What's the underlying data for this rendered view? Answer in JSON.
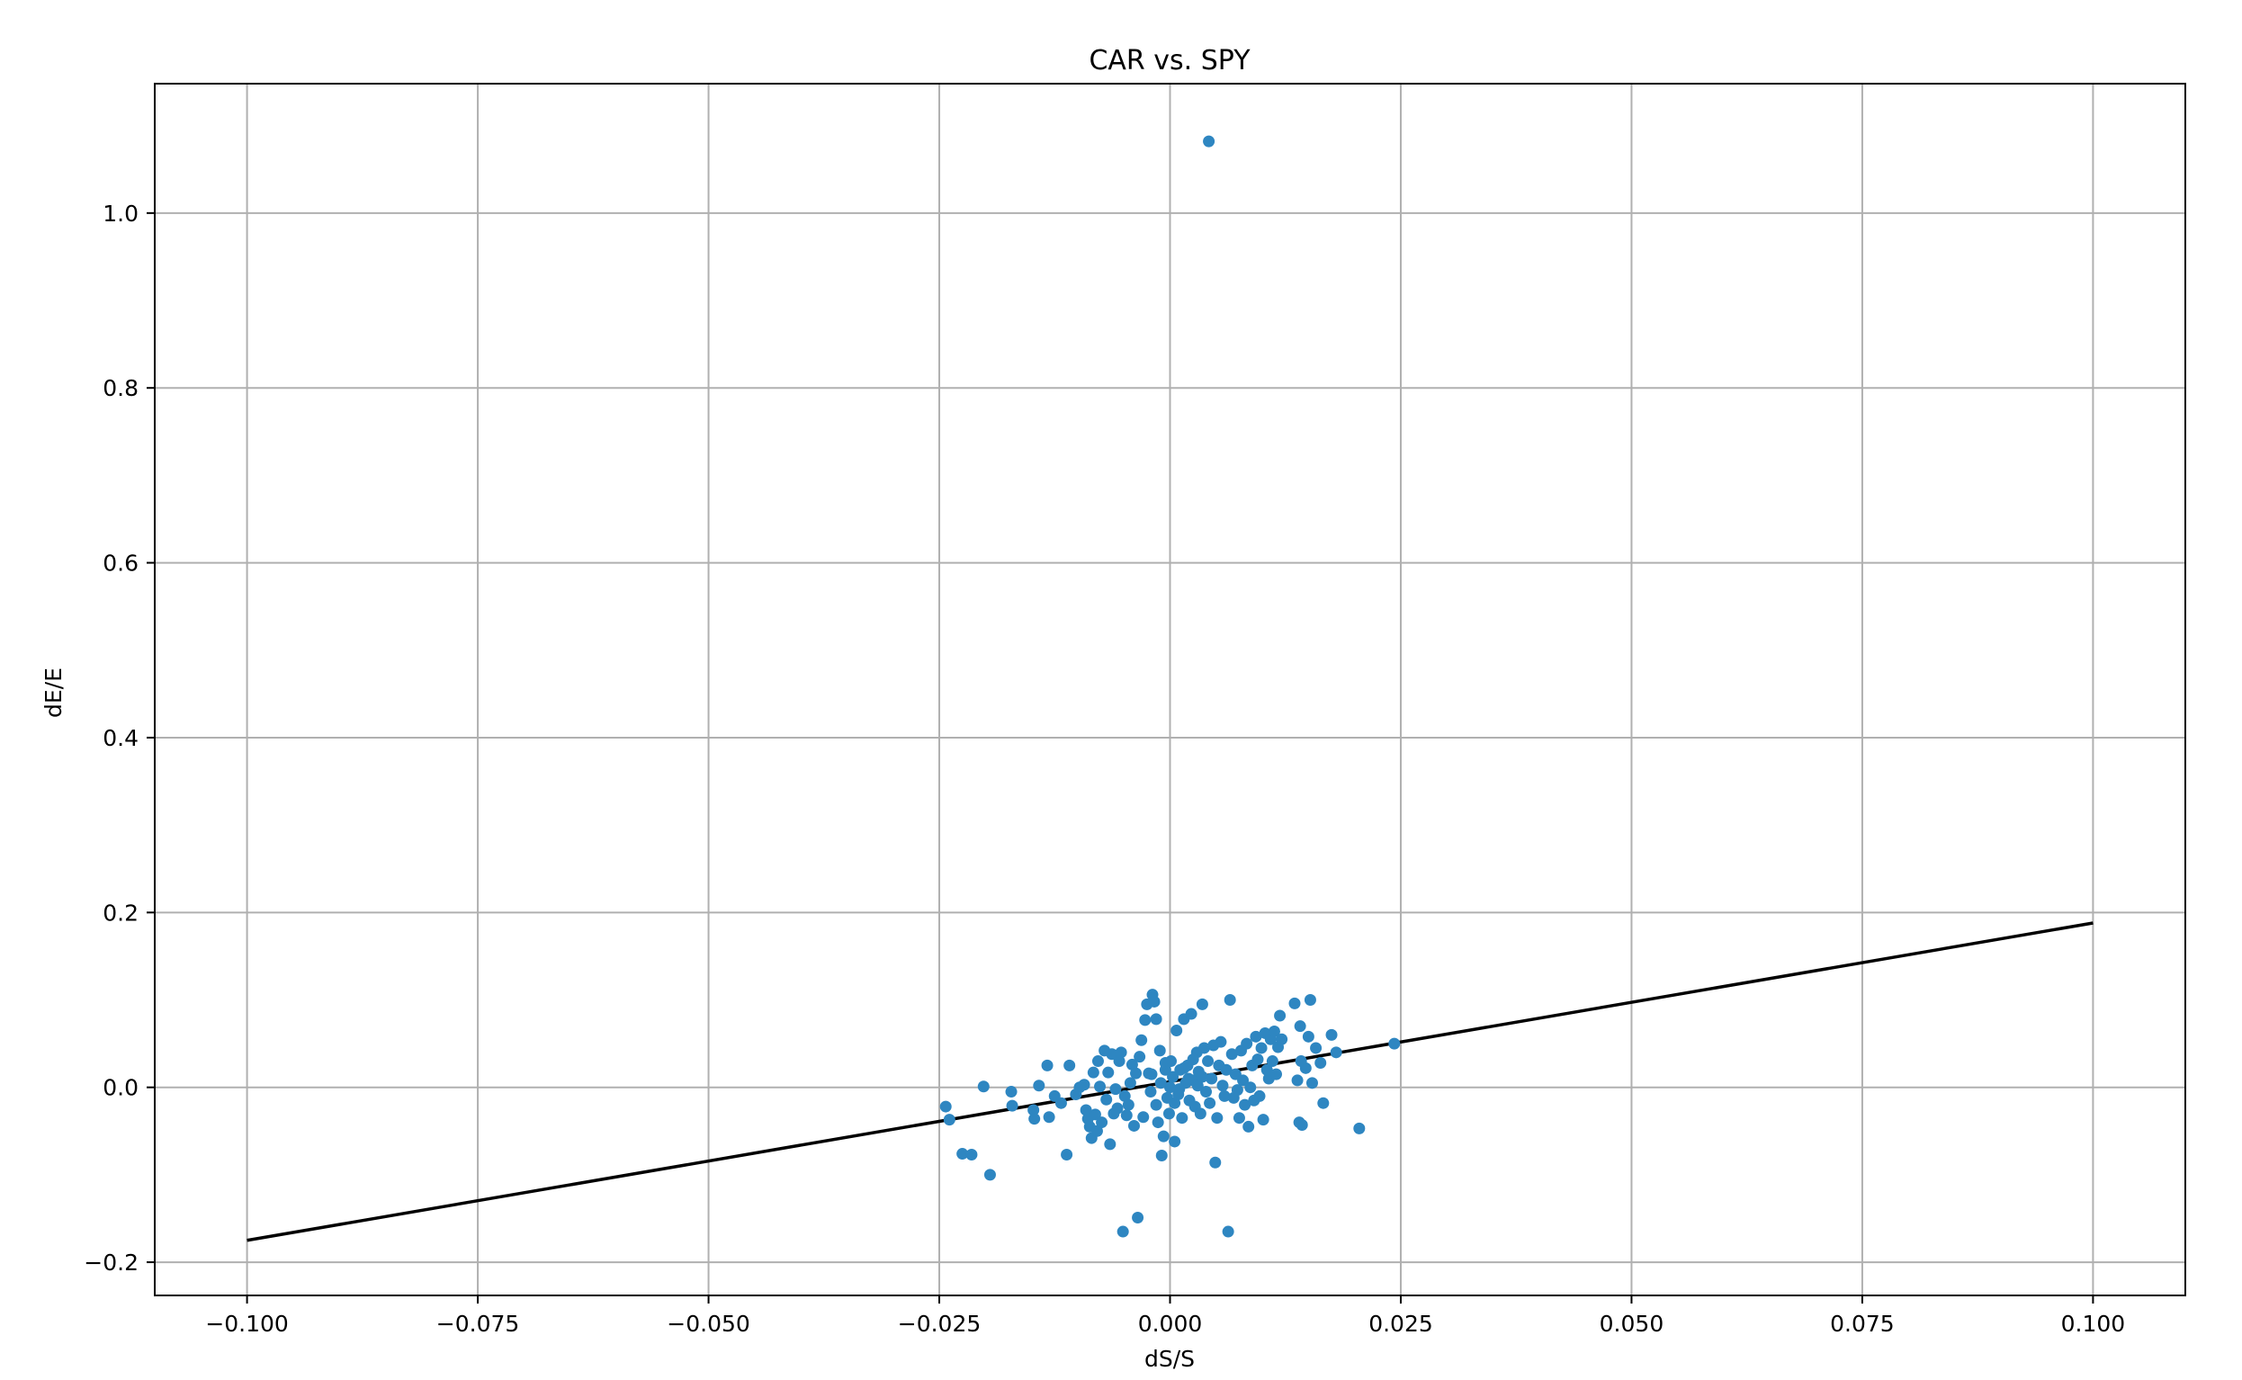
{
  "chart_data": {
    "type": "scatter",
    "title": "CAR vs. SPY",
    "xlabel": "dS/S",
    "ylabel": "dE/E",
    "xlim": [
      -0.11,
      0.11
    ],
    "ylim": [
      -0.238,
      1.148
    ],
    "xticks": [
      -0.1,
      -0.075,
      -0.05,
      -0.025,
      0.0,
      0.025,
      0.05,
      0.075,
      0.1
    ],
    "xtick_labels": [
      "−0.100",
      "−0.075",
      "−0.050",
      "−0.025",
      "0.000",
      "0.025",
      "0.050",
      "0.075",
      "0.100"
    ],
    "yticks": [
      -0.2,
      0.0,
      0.2,
      0.4,
      0.6,
      0.8,
      1.0
    ],
    "ytick_labels": [
      "−0.2",
      "0.0",
      "0.2",
      "0.4",
      "0.6",
      "0.8",
      "1.0"
    ],
    "grid": true,
    "colors": {
      "points": "#2e86c1",
      "line": "#000000",
      "grid": "#b0b0b0"
    },
    "fit_line": {
      "x": [
        -0.1,
        0.1
      ],
      "y": [
        -0.175,
        0.188
      ]
    },
    "points": [
      [
        0.0042,
        1.082
      ],
      [
        -0.0243,
        -0.022
      ],
      [
        -0.0239,
        -0.037
      ],
      [
        -0.0225,
        -0.076
      ],
      [
        -0.0215,
        -0.077
      ],
      [
        -0.0202,
        0.001
      ],
      [
        -0.0195,
        -0.1
      ],
      [
        -0.0172,
        -0.005
      ],
      [
        -0.0171,
        -0.021
      ],
      [
        -0.0148,
        -0.026
      ],
      [
        -0.0147,
        -0.036
      ],
      [
        -0.0142,
        0.002
      ],
      [
        -0.0133,
        0.025
      ],
      [
        -0.0131,
        -0.034
      ],
      [
        -0.0125,
        -0.01
      ],
      [
        -0.0118,
        -0.018
      ],
      [
        -0.0112,
        -0.077
      ],
      [
        -0.0109,
        0.025
      ],
      [
        -0.0102,
        -0.008
      ],
      [
        -0.0098,
        0.0
      ],
      [
        -0.0093,
        0.003
      ],
      [
        -0.0091,
        -0.026
      ],
      [
        -0.0089,
        -0.036
      ],
      [
        -0.0087,
        -0.045
      ],
      [
        -0.0085,
        -0.058
      ],
      [
        -0.0083,
        0.017
      ],
      [
        -0.0081,
        -0.031
      ],
      [
        -0.0079,
        -0.05
      ],
      [
        -0.0078,
        0.03
      ],
      [
        -0.0076,
        0.001
      ],
      [
        -0.0074,
        -0.04
      ],
      [
        -0.0071,
        0.042
      ],
      [
        -0.0069,
        -0.014
      ],
      [
        -0.0067,
        0.017
      ],
      [
        -0.0065,
        -0.065
      ],
      [
        -0.0063,
        0.038
      ],
      [
        -0.0061,
        -0.03
      ],
      [
        -0.0059,
        -0.002
      ],
      [
        -0.0057,
        -0.024
      ],
      [
        -0.0055,
        0.03
      ],
      [
        -0.0053,
        0.04
      ],
      [
        -0.0051,
        -0.165
      ],
      [
        -0.0049,
        -0.01
      ],
      [
        -0.0047,
        -0.032
      ],
      [
        -0.0045,
        -0.02
      ],
      [
        -0.0043,
        0.005
      ],
      [
        -0.0041,
        0.026
      ],
      [
        -0.0039,
        -0.044
      ],
      [
        -0.0037,
        0.016
      ],
      [
        -0.0035,
        -0.149
      ],
      [
        -0.0033,
        0.035
      ],
      [
        -0.0031,
        0.054
      ],
      [
        -0.0029,
        -0.034
      ],
      [
        -0.0027,
        0.077
      ],
      [
        -0.0025,
        0.095
      ],
      [
        -0.0023,
        0.016
      ],
      [
        -0.0021,
        -0.005
      ],
      [
        -0.0019,
        0.106
      ],
      [
        -0.0017,
        0.098
      ],
      [
        -0.0015,
        0.078
      ],
      [
        -0.0013,
        -0.04
      ],
      [
        -0.0011,
        0.042
      ],
      [
        -0.0009,
        -0.078
      ],
      [
        -0.0007,
        -0.056
      ],
      [
        -0.0005,
        0.02
      ],
      [
        -0.0003,
        -0.012
      ],
      [
        -0.0001,
        -0.03
      ],
      [
        0.0001,
        0.03
      ],
      [
        0.0003,
        0.012
      ],
      [
        0.0005,
        -0.062
      ],
      [
        0.0007,
        0.065
      ],
      [
        0.0009,
        -0.008
      ],
      [
        0.0011,
        0.02
      ],
      [
        0.0013,
        -0.035
      ],
      [
        0.0015,
        0.078
      ],
      [
        0.0017,
        0.005
      ],
      [
        0.0019,
        0.025
      ],
      [
        0.0021,
        -0.015
      ],
      [
        0.0023,
        0.084
      ],
      [
        0.0025,
        0.008
      ],
      [
        0.0027,
        -0.022
      ],
      [
        0.0029,
        0.04
      ],
      [
        0.0031,
        0.018
      ],
      [
        0.0033,
        -0.03
      ],
      [
        0.0035,
        0.095
      ],
      [
        0.0037,
        0.045
      ],
      [
        0.0039,
        -0.005
      ],
      [
        0.0041,
        0.03
      ],
      [
        0.0043,
        -0.018
      ],
      [
        0.0045,
        0.01
      ],
      [
        0.0047,
        0.048
      ],
      [
        0.0049,
        -0.086
      ],
      [
        0.0051,
        -0.035
      ],
      [
        0.0053,
        0.025
      ],
      [
        0.0055,
        0.052
      ],
      [
        0.0057,
        0.002
      ],
      [
        0.0059,
        -0.01
      ],
      [
        0.0061,
        0.02
      ],
      [
        0.0063,
        -0.165
      ],
      [
        0.0065,
        0.1
      ],
      [
        0.0067,
        0.038
      ],
      [
        0.0069,
        -0.012
      ],
      [
        0.0071,
        0.015
      ],
      [
        0.0073,
        -0.003
      ],
      [
        0.0075,
        -0.035
      ],
      [
        0.0077,
        0.042
      ],
      [
        0.0079,
        0.008
      ],
      [
        0.0081,
        -0.02
      ],
      [
        0.0083,
        0.05
      ],
      [
        0.0085,
        -0.045
      ],
      [
        0.0087,
        0.0
      ],
      [
        0.0089,
        0.025
      ],
      [
        0.0091,
        -0.015
      ],
      [
        0.0093,
        0.058
      ],
      [
        0.0095,
        0.032
      ],
      [
        0.0097,
        -0.01
      ],
      [
        0.0099,
        0.045
      ],
      [
        0.0101,
        -0.037
      ],
      [
        0.0103,
        0.062
      ],
      [
        0.0105,
        0.02
      ],
      [
        0.0107,
        0.01
      ],
      [
        0.0109,
        0.055
      ],
      [
        0.0111,
        0.03
      ],
      [
        0.0113,
        0.064
      ],
      [
        0.0115,
        0.015
      ],
      [
        0.0117,
        0.046
      ],
      [
        0.0119,
        0.082
      ],
      [
        0.0121,
        0.055
      ],
      [
        0.0135,
        0.096
      ],
      [
        0.0138,
        0.008
      ],
      [
        0.014,
        -0.04
      ],
      [
        0.0141,
        0.07
      ],
      [
        0.0142,
        0.03
      ],
      [
        0.0143,
        -0.043
      ],
      [
        0.0147,
        0.022
      ],
      [
        0.015,
        0.058
      ],
      [
        0.0152,
        0.1
      ],
      [
        0.0154,
        0.005
      ],
      [
        0.0158,
        0.045
      ],
      [
        0.0163,
        0.028
      ],
      [
        0.0166,
        -0.018
      ],
      [
        0.0175,
        0.06
      ],
      [
        0.018,
        0.04
      ],
      [
        0.0205,
        -0.047
      ],
      [
        0.0243,
        0.05
      ],
      [
        -0.002,
        0.015
      ],
      [
        -0.001,
        0.005
      ],
      [
        0.0,
        0.0
      ],
      [
        0.001,
        -0.002
      ],
      [
        0.002,
        0.01
      ],
      [
        0.003,
        0.002
      ],
      [
        0.0015,
        0.022
      ],
      [
        0.0005,
        -0.018
      ],
      [
        -0.0015,
        -0.02
      ],
      [
        0.0025,
        0.032
      ],
      [
        0.0035,
        0.012
      ],
      [
        -0.0005,
        0.028
      ]
    ]
  }
}
